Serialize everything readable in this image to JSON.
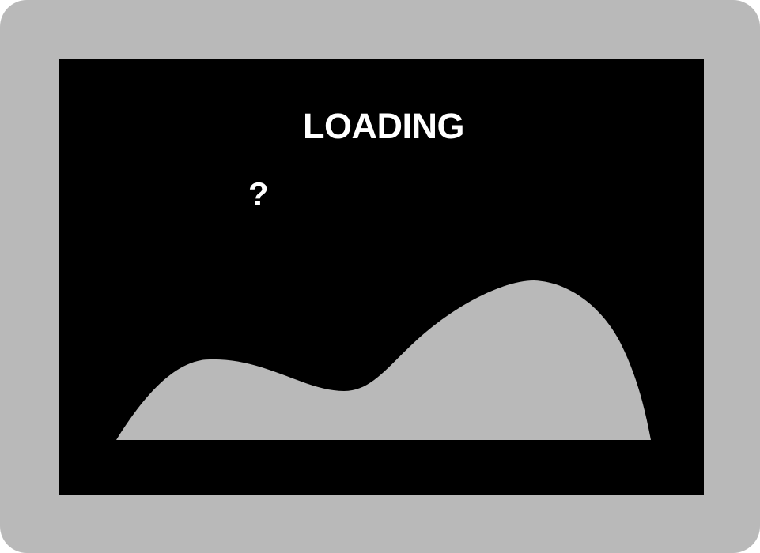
{
  "loading": {
    "label": "LOADING",
    "unknown_symbol": "?"
  },
  "colors": {
    "frame": "#b9b9b9",
    "screen": "#000000",
    "text": "#ffffff",
    "hill": "#b9b9b9"
  },
  "icons": {
    "placeholder": "broken-image-icon",
    "landscape": "hill-landscape-icon"
  }
}
